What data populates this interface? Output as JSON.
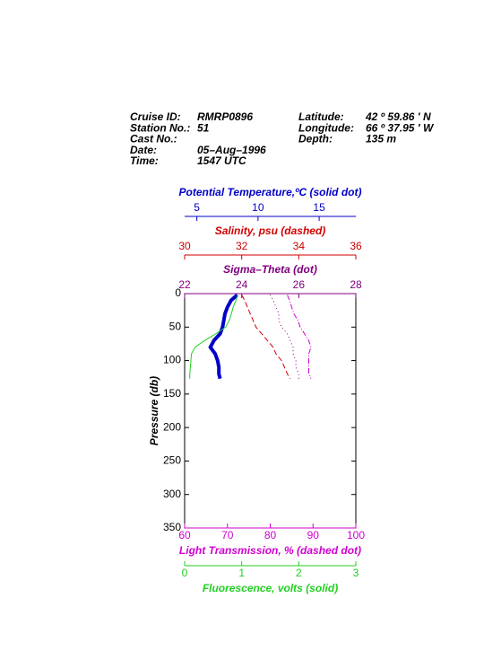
{
  "header": {
    "left": [
      [
        "Cruise ID:",
        "RMRP0896"
      ],
      [
        "Station No.:",
        "51"
      ],
      [
        "Cast No.:",
        ""
      ],
      [
        "Date:",
        "05–Aug–1996"
      ],
      [
        "Time:",
        "1547 UTC"
      ]
    ],
    "right": [
      [
        "Latitude:",
        "42 º  59.86 ' N"
      ],
      [
        "Longitude:",
        "66 º  37.95 ' W"
      ],
      [
        "Depth:",
        "135 m"
      ]
    ]
  },
  "chart_data": {
    "type": "profile",
    "y": [
      2,
      10,
      20,
      30,
      40,
      50,
      60,
      70,
      80,
      90,
      100,
      110,
      120,
      127
    ],
    "ylabel": "Pressure (db)",
    "ylim": [
      0,
      350
    ],
    "yticks": [
      0,
      50,
      100,
      150,
      200,
      250,
      300,
      350
    ],
    "y_inverted": true,
    "series": [
      {
        "name": "Potential Temperature,ºC (solid dot)",
        "color": "#0000c8",
        "style": "thick",
        "position": "top",
        "xlim": [
          4,
          18
        ],
        "xticks": [
          5,
          10,
          15
        ],
        "values": [
          8.3,
          7.8,
          7.5,
          7.3,
          7.2,
          7.1,
          6.9,
          6.4,
          6.1,
          6.5,
          6.7,
          6.8,
          6.8,
          6.9
        ]
      },
      {
        "name": "Salinity, psu  (dashed)",
        "color": "#d00000",
        "style": "dashed",
        "position": "top",
        "xlim": [
          30,
          36
        ],
        "xticks": [
          30,
          32,
          34,
          36
        ],
        "values": [
          32.0,
          32.1,
          32.2,
          32.3,
          32.4,
          32.5,
          32.7,
          32.9,
          33.1,
          33.2,
          33.4,
          33.5,
          33.6,
          33.7
        ]
      },
      {
        "name": "Sigma–Theta (dot)",
        "color": "#800080",
        "style": "dot",
        "position": "top",
        "xlim": [
          22,
          28
        ],
        "xticks": [
          22,
          24,
          26,
          28
        ],
        "values": [
          25.0,
          25.1,
          25.2,
          25.3,
          25.3,
          25.4,
          25.6,
          25.7,
          25.8,
          25.8,
          25.9,
          25.9,
          26.0,
          26.0
        ]
      },
      {
        "name": "Light Transmission, % (dashed dot)",
        "color": "#d000d0",
        "style": "dashdot",
        "position": "bottom",
        "xlim": [
          60,
          100
        ],
        "xticks": [
          60,
          70,
          80,
          90,
          100
        ],
        "values": [
          84.0,
          84.5,
          85.0,
          85.5,
          86.5,
          87.0,
          88.0,
          89.0,
          89.5,
          89.0,
          89.0,
          89.0,
          89.0,
          89.5
        ]
      },
      {
        "name": "Fluorescence, volts (solid)",
        "color": "#20d020",
        "style": "solid",
        "position": "bottom",
        "xlim": [
          0,
          3
        ],
        "xticks": [
          0,
          1,
          2,
          3
        ],
        "values": [
          0.93,
          0.9,
          0.85,
          0.82,
          0.78,
          0.72,
          0.55,
          0.35,
          0.18,
          0.12,
          0.11,
          0.1,
          0.09,
          0.09
        ]
      }
    ]
  }
}
